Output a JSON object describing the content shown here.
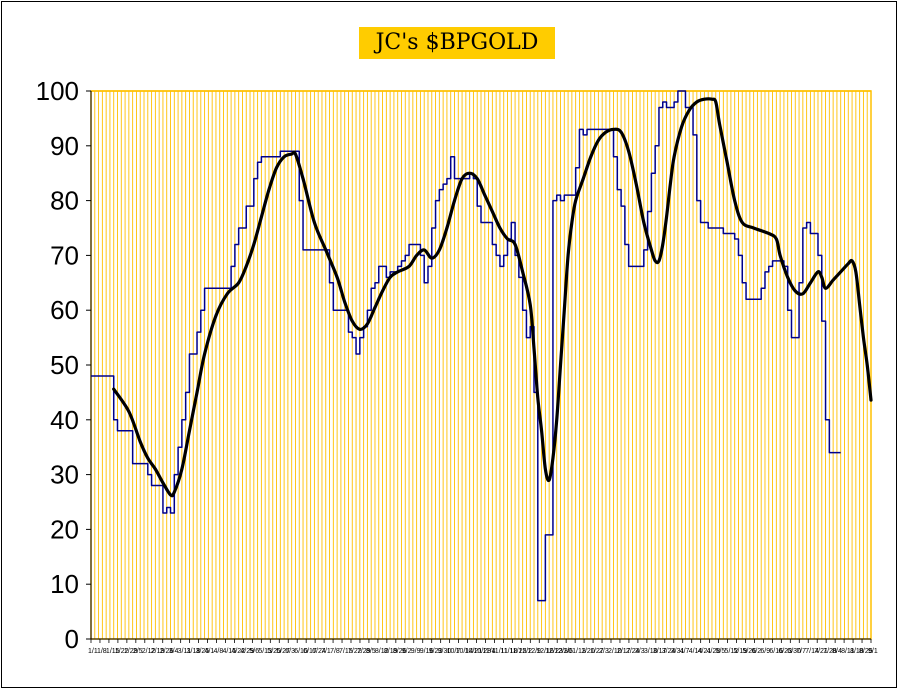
{
  "chart_data": {
    "type": "line",
    "title": "JC's $BPGOLD",
    "xlabel": "",
    "ylabel": "",
    "ylim": [
      0,
      100
    ],
    "yticks": [
      0,
      10,
      20,
      30,
      40,
      50,
      60,
      70,
      80,
      90,
      100
    ],
    "x_tick_labels": [
      "1/1",
      "1/8",
      "1/15",
      "1/22",
      "1/29",
      "2/5",
      "2/12",
      "2/19",
      "2/26",
      "3/4",
      "3/11",
      "3/18",
      "3/25",
      "4/1",
      "4/8",
      "4/15",
      "4/22",
      "4/29",
      "5/6",
      "5/13",
      "5/20",
      "5/27",
      "6/3",
      "6/10",
      "6/17",
      "6/24",
      "7/1",
      "7/8",
      "7/15",
      "7/22",
      "7/29",
      "8/5",
      "8/12",
      "8/19",
      "8/26",
      "9/2",
      "9/9",
      "9/16",
      "9/23",
      "9/30",
      "10/7",
      "10/14",
      "10/21",
      "10/28",
      "11/4",
      "11/11",
      "11/18",
      "11/25",
      "12/2",
      "12/9",
      "12/16",
      "12/23",
      "12/30",
      "1/6",
      "1/13",
      "1/20",
      "1/27",
      "2/3",
      "2/10",
      "2/17",
      "2/24",
      "3/3",
      "3/10",
      "3/17",
      "3/24",
      "3/31",
      "4/7",
      "4/14",
      "4/21",
      "4/28",
      "5/5",
      "5/12",
      "5/19",
      "5/26",
      "6/2",
      "6/9",
      "6/16",
      "6/23",
      "6/30",
      "7/7",
      "7/14",
      "7/21",
      "7/28",
      "8/4",
      "8/11",
      "8/18",
      "8/25",
      "9/1"
    ],
    "grid": true,
    "background_color": "#FFFFFF",
    "gridline_color": "#FFC000",
    "series": [
      {
        "color": "#00008B",
        "style": "step",
        "values": [
          [
            0,
            48
          ],
          [
            5,
            48
          ],
          [
            6,
            40
          ],
          [
            7,
            38
          ],
          [
            10,
            38
          ],
          [
            11,
            32
          ],
          [
            14,
            32
          ],
          [
            15,
            30
          ],
          [
            16,
            28
          ],
          [
            18,
            28
          ],
          [
            19,
            23
          ],
          [
            20,
            24
          ],
          [
            21,
            23
          ],
          [
            22,
            30
          ],
          [
            23,
            35
          ],
          [
            24,
            40
          ],
          [
            25,
            45
          ],
          [
            26,
            52
          ],
          [
            27,
            52
          ],
          [
            28,
            56
          ],
          [
            29,
            60
          ],
          [
            30,
            64
          ],
          [
            36,
            64
          ],
          [
            37,
            68
          ],
          [
            38,
            72
          ],
          [
            39,
            75
          ],
          [
            40,
            75
          ],
          [
            41,
            79
          ],
          [
            42,
            79
          ],
          [
            43,
            84
          ],
          [
            44,
            87
          ],
          [
            45,
            88
          ],
          [
            49,
            88
          ],
          [
            50,
            89
          ],
          [
            54,
            89
          ],
          [
            55,
            80
          ],
          [
            56,
            71
          ],
          [
            62,
            71
          ],
          [
            63,
            65
          ],
          [
            64,
            60
          ],
          [
            67,
            60
          ],
          [
            68,
            56
          ],
          [
            69,
            55
          ],
          [
            70,
            52
          ],
          [
            71,
            55
          ],
          [
            72,
            57
          ],
          [
            73,
            60
          ],
          [
            74,
            64
          ],
          [
            75,
            65
          ],
          [
            76,
            68
          ],
          [
            77,
            68
          ],
          [
            78,
            66
          ],
          [
            79,
            67
          ],
          [
            80,
            67
          ],
          [
            81,
            68
          ],
          [
            82,
            69
          ],
          [
            83,
            70
          ],
          [
            84,
            72
          ],
          [
            86,
            72
          ],
          [
            87,
            70
          ],
          [
            88,
            65
          ],
          [
            89,
            68
          ],
          [
            90,
            75
          ],
          [
            91,
            80
          ],
          [
            92,
            82
          ],
          [
            93,
            83
          ],
          [
            94,
            84
          ],
          [
            95,
            88
          ],
          [
            96,
            84
          ],
          [
            100,
            85
          ],
          [
            101,
            84
          ],
          [
            102,
            79
          ],
          [
            103,
            76
          ],
          [
            106,
            72
          ],
          [
            107,
            70
          ],
          [
            108,
            68
          ],
          [
            109,
            70
          ],
          [
            110,
            73
          ],
          [
            111,
            76
          ],
          [
            112,
            70
          ],
          [
            113,
            66
          ],
          [
            114,
            60
          ],
          [
            115,
            55
          ],
          [
            116,
            57
          ],
          [
            117,
            45
          ],
          [
            118,
            7
          ],
          [
            119,
            7
          ],
          [
            120,
            19
          ],
          [
            121,
            19
          ],
          [
            122,
            80
          ],
          [
            123,
            81
          ],
          [
            124,
            80
          ],
          [
            125,
            81
          ],
          [
            127,
            81
          ],
          [
            128,
            86
          ],
          [
            129,
            93
          ],
          [
            130,
            92
          ],
          [
            131,
            93
          ],
          [
            134,
            93
          ],
          [
            136,
            93
          ],
          [
            137,
            93
          ],
          [
            138,
            88
          ],
          [
            139,
            82
          ],
          [
            140,
            79
          ],
          [
            141,
            72
          ],
          [
            142,
            68
          ],
          [
            145,
            68
          ],
          [
            146,
            71
          ],
          [
            147,
            78
          ],
          [
            148,
            85
          ],
          [
            149,
            90
          ],
          [
            150,
            97
          ],
          [
            151,
            98
          ],
          [
            152,
            97
          ],
          [
            153,
            97
          ],
          [
            154,
            98
          ],
          [
            155,
            100
          ],
          [
            156,
            100
          ],
          [
            157,
            97
          ],
          [
            158,
            97
          ],
          [
            159,
            92
          ],
          [
            160,
            80
          ],
          [
            161,
            76
          ],
          [
            162,
            76
          ],
          [
            163,
            75
          ],
          [
            167,
            74
          ],
          [
            170,
            73
          ],
          [
            171,
            70
          ],
          [
            172,
            65
          ],
          [
            173,
            62
          ],
          [
            176,
            62
          ],
          [
            177,
            64
          ],
          [
            178,
            67
          ],
          [
            179,
            68
          ],
          [
            180,
            69
          ],
          [
            183,
            68
          ],
          [
            184,
            60
          ],
          [
            185,
            55
          ],
          [
            186,
            55
          ],
          [
            187,
            65
          ],
          [
            188,
            75
          ],
          [
            189,
            76
          ],
          [
            190,
            74
          ],
          [
            191,
            74
          ],
          [
            192,
            70
          ],
          [
            193,
            58
          ],
          [
            194,
            40
          ],
          [
            195,
            34
          ],
          [
            198,
            34
          ]
        ]
      },
      {
        "color": "#000000",
        "style": "smooth",
        "values": [
          [
            6,
            45.6
          ],
          [
            10,
            41.5
          ],
          [
            13,
            36
          ],
          [
            15,
            33
          ],
          [
            17,
            31
          ],
          [
            19,
            28.5
          ],
          [
            21,
            26.3
          ],
          [
            22,
            26.8
          ],
          [
            24,
            31
          ],
          [
            26,
            38
          ],
          [
            28,
            45
          ],
          [
            30,
            52
          ],
          [
            33,
            59
          ],
          [
            36,
            63
          ],
          [
            39,
            65
          ],
          [
            41,
            68
          ],
          [
            43,
            72
          ],
          [
            45,
            77
          ],
          [
            47,
            82
          ],
          [
            49,
            86
          ],
          [
            51,
            88
          ],
          [
            53,
            88.5
          ],
          [
            54,
            88.5
          ],
          [
            56,
            84
          ],
          [
            59,
            76
          ],
          [
            62,
            71
          ],
          [
            65,
            66
          ],
          [
            67,
            61.5
          ],
          [
            69,
            58
          ],
          [
            71,
            56.5
          ],
          [
            73,
            57.5
          ],
          [
            75,
            60.5
          ],
          [
            77,
            63.5
          ],
          [
            79,
            66
          ],
          [
            81,
            67
          ],
          [
            84,
            68
          ],
          [
            86,
            70
          ],
          [
            88,
            71
          ],
          [
            90,
            69.5
          ],
          [
            92,
            71
          ],
          [
            94,
            75
          ],
          [
            96,
            80
          ],
          [
            98,
            84
          ],
          [
            100,
            85
          ],
          [
            102,
            84
          ],
          [
            104,
            81
          ],
          [
            106,
            78
          ],
          [
            108,
            75
          ],
          [
            110,
            73
          ],
          [
            112,
            72
          ],
          [
            114,
            67
          ],
          [
            116,
            61
          ],
          [
            117,
            53
          ],
          [
            118,
            44
          ],
          [
            119,
            38
          ],
          [
            120,
            31
          ],
          [
            121,
            29
          ],
          [
            122,
            33
          ],
          [
            123,
            40
          ],
          [
            124,
            50
          ],
          [
            125,
            60
          ],
          [
            126,
            70
          ],
          [
            127,
            76
          ],
          [
            128,
            80
          ],
          [
            130,
            84
          ],
          [
            132,
            88
          ],
          [
            134,
            91
          ],
          [
            136,
            92.5
          ],
          [
            138,
            93
          ],
          [
            140,
            92.5
          ],
          [
            142,
            89
          ],
          [
            144,
            83
          ],
          [
            146,
            76
          ],
          [
            148,
            71
          ],
          [
            149,
            69
          ],
          [
            150,
            69
          ],
          [
            151,
            72
          ],
          [
            152,
            77
          ],
          [
            153,
            83
          ],
          [
            154,
            88
          ],
          [
            156,
            93.5
          ],
          [
            158,
            96.5
          ],
          [
            160,
            98
          ],
          [
            162,
            98.5
          ],
          [
            164,
            98.5
          ],
          [
            165,
            98
          ],
          [
            166,
            94
          ],
          [
            168,
            87
          ],
          [
            170,
            80
          ],
          [
            172,
            76
          ],
          [
            175,
            75
          ],
          [
            179,
            74
          ],
          [
            181,
            73
          ],
          [
            182,
            70
          ],
          [
            184,
            66
          ],
          [
            186,
            63.5
          ],
          [
            188,
            63
          ],
          [
            190,
            65
          ],
          [
            192,
            67
          ],
          [
            193,
            66
          ],
          [
            194,
            64
          ],
          [
            196,
            65.5
          ],
          [
            198,
            67
          ],
          [
            200,
            68.5
          ],
          [
            201,
            69
          ],
          [
            202,
            67
          ],
          [
            203,
            61
          ],
          [
            204,
            55
          ],
          [
            205,
            50
          ],
          [
            206,
            43.6
          ]
        ]
      }
    ]
  }
}
